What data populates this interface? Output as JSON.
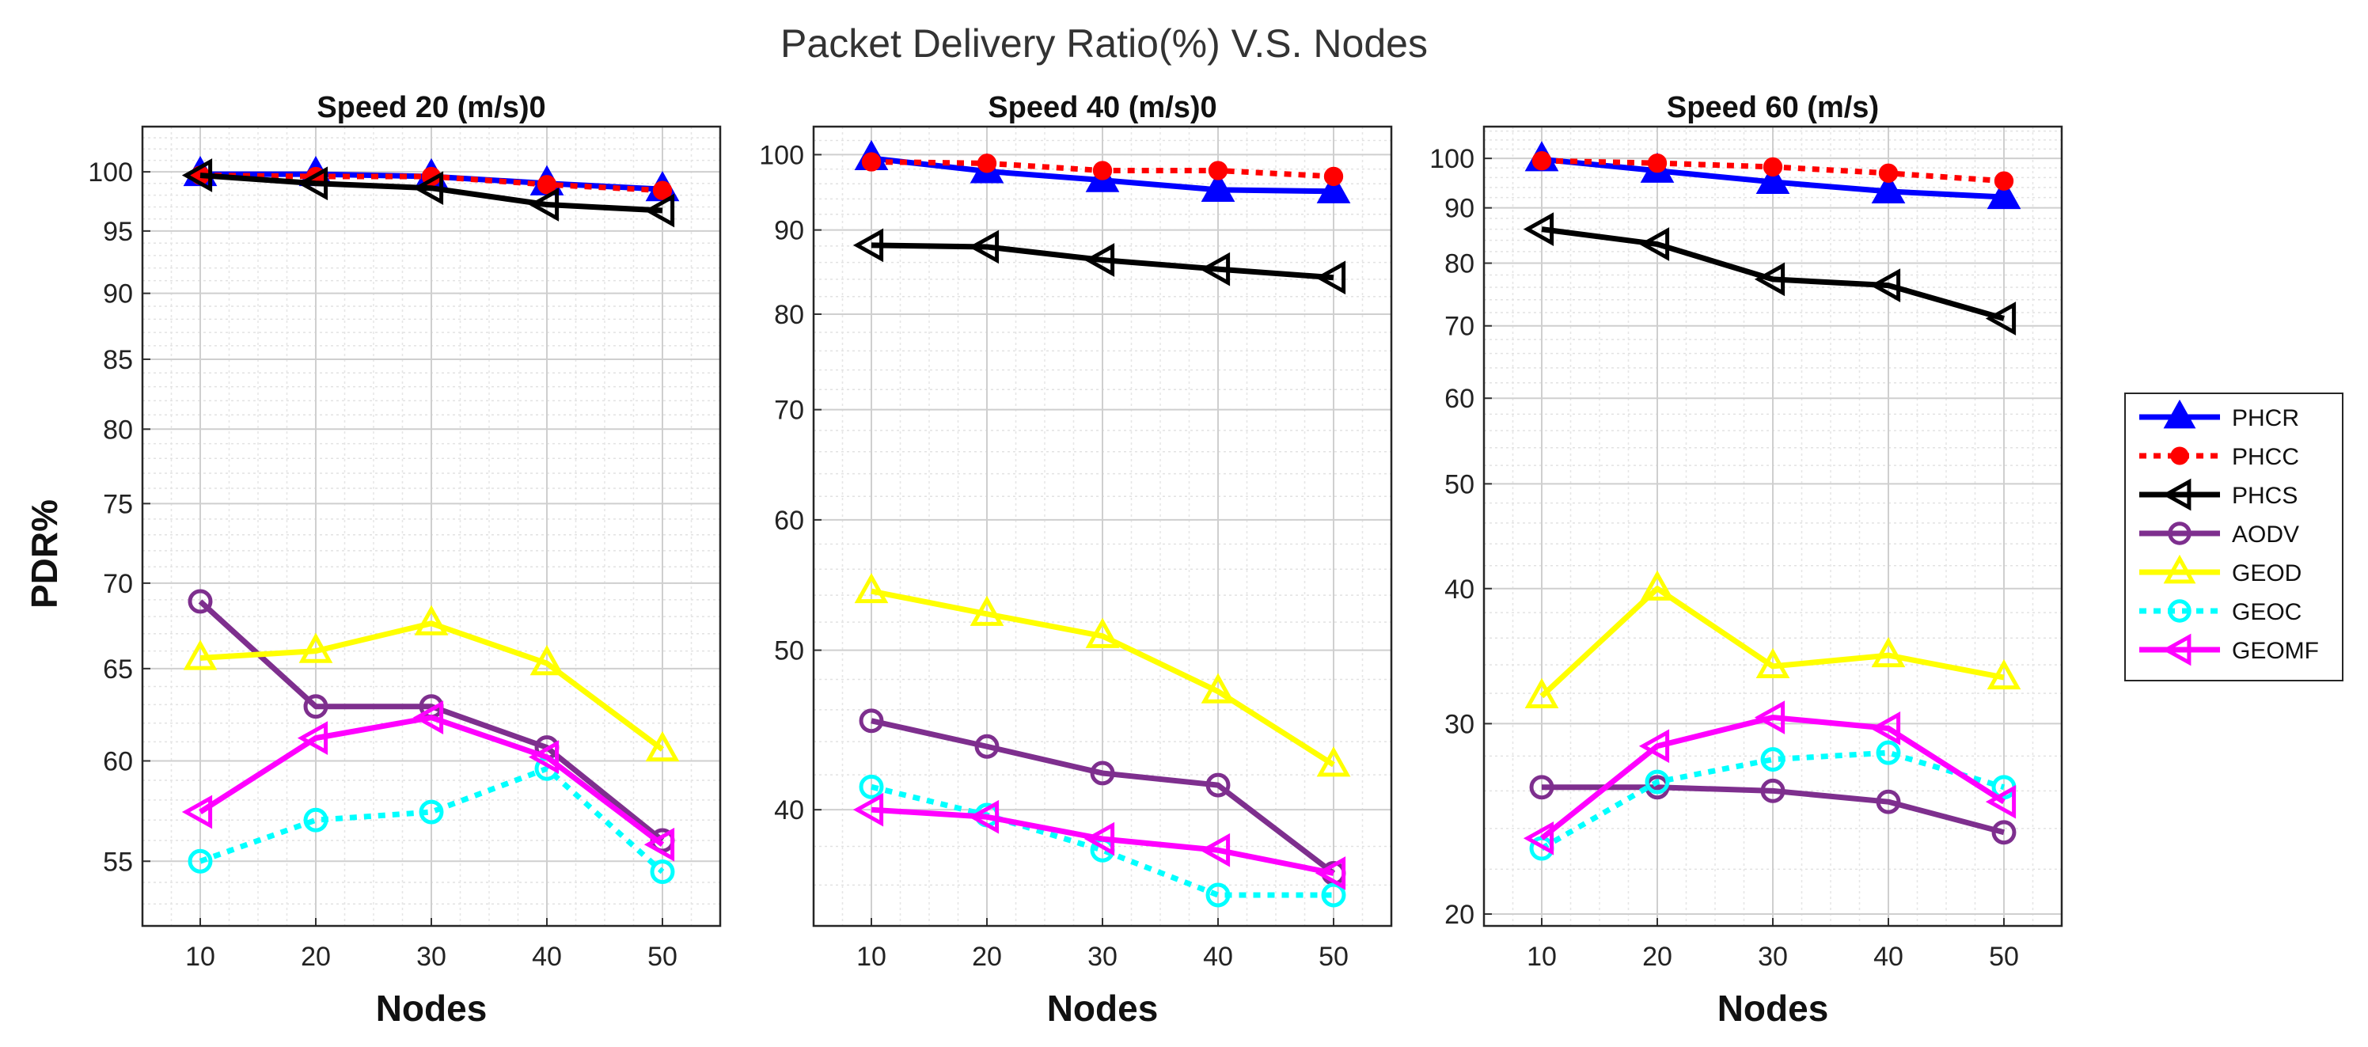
{
  "figure_title": "Packet Delivery Ratio(%) V.S. Nodes",
  "y_axis_label": "PDR%",
  "legend": [
    {
      "name": "PHCR",
      "color": "#0000ff",
      "dash": "solid",
      "marker": "triangle-up",
      "fill": true
    },
    {
      "name": "PHCC",
      "color": "#ff0000",
      "dash": "dotted",
      "marker": "dot",
      "fill": true
    },
    {
      "name": "PHCS",
      "color": "#000000",
      "dash": "solid",
      "marker": "triangle-left",
      "fill": false
    },
    {
      "name": "AODV",
      "color": "#7e2f8e",
      "dash": "solid",
      "marker": "circle",
      "fill": false
    },
    {
      "name": "GEOD",
      "color": "#ffff00",
      "dash": "solid",
      "marker": "triangle-up",
      "fill": false
    },
    {
      "name": "GEOC",
      "color": "#00ffff",
      "dash": "dotted",
      "marker": "circle",
      "fill": false
    },
    {
      "name": "GEOMF",
      "color": "#ff00ff",
      "dash": "solid",
      "marker": "triangle-left",
      "fill": false
    }
  ],
  "chart_data": [
    {
      "type": "line",
      "title": "Speed 20 (m/s)0",
      "xlabel": "Nodes",
      "ylabel": "PDR%",
      "yscale": "log",
      "x": [
        10,
        20,
        30,
        40,
        50
      ],
      "xlim": [
        5,
        55
      ],
      "ylim": [
        52,
        104
      ],
      "yticks": [
        55,
        60,
        65,
        70,
        75,
        80,
        85,
        90,
        95,
        100
      ],
      "series": [
        {
          "name": "PHCR",
          "values": [
            99.8,
            99.8,
            99.6,
            99.0,
            98.5
          ]
        },
        {
          "name": "PHCC",
          "values": [
            99.7,
            99.6,
            99.6,
            98.9,
            98.4
          ]
        },
        {
          "name": "PHCS",
          "values": [
            99.7,
            99.0,
            98.6,
            97.2,
            96.7
          ]
        },
        {
          "name": "AODV",
          "values": [
            68.9,
            62.9,
            62.9,
            60.7,
            56.0
          ]
        },
        {
          "name": "GEOD",
          "values": [
            65.6,
            66.0,
            67.6,
            65.3,
            60.6
          ]
        },
        {
          "name": "GEOC",
          "values": [
            55.0,
            57.0,
            57.4,
            59.6,
            54.5
          ]
        },
        {
          "name": "GEOMF",
          "values": [
            57.4,
            61.2,
            62.3,
            60.2,
            55.8
          ]
        }
      ]
    },
    {
      "type": "line",
      "title": "Speed 40 (m/s)0",
      "xlabel": "Nodes",
      "ylabel": "",
      "yscale": "log",
      "x": [
        10,
        20,
        30,
        40,
        50
      ],
      "xlim": [
        5,
        55
      ],
      "ylim": [
        34,
        104
      ],
      "yticks": [
        40,
        50,
        60,
        70,
        80,
        90,
        100
      ],
      "series": [
        {
          "name": "PHCR",
          "values": [
            99.5,
            97.7,
            96.5,
            95.2,
            95.0
          ]
        },
        {
          "name": "PHCC",
          "values": [
            99.0,
            98.8,
            97.8,
            97.8,
            97.0
          ]
        },
        {
          "name": "PHCS",
          "values": [
            88.1,
            87.9,
            86.3,
            85.2,
            84.2
          ]
        },
        {
          "name": "AODV",
          "values": [
            45.3,
            43.7,
            42.1,
            41.4,
            36.6
          ]
        },
        {
          "name": "GEOD",
          "values": [
            54.3,
            52.6,
            51.0,
            47.2,
            42.6
          ]
        },
        {
          "name": "GEOC",
          "values": [
            41.3,
            39.7,
            37.8,
            35.5,
            35.5
          ]
        },
        {
          "name": "GEOMF",
          "values": [
            40.0,
            39.6,
            38.4,
            37.8,
            36.6
          ]
        }
      ]
    },
    {
      "type": "line",
      "title": "Speed 60 (m/s)",
      "xlabel": "Nodes",
      "ylabel": "",
      "yscale": "log",
      "x": [
        10,
        20,
        30,
        40,
        50
      ],
      "xlim": [
        5,
        55
      ],
      "ylim": [
        19.5,
        107
      ],
      "yticks": [
        20,
        30,
        40,
        50,
        60,
        70,
        80,
        90,
        100
      ],
      "series": [
        {
          "name": "PHCR",
          "values": [
            99.8,
            97.4,
            95.1,
            93.2,
            92.1
          ]
        },
        {
          "name": "PHCC",
          "values": [
            99.5,
            99.0,
            98.2,
            96.9,
            95.3
          ]
        },
        {
          "name": "PHCS",
          "values": [
            86.0,
            83.3,
            77.3,
            76.3,
            71.1
          ]
        },
        {
          "name": "AODV",
          "values": [
            26.2,
            26.2,
            26.0,
            25.4,
            23.8
          ]
        },
        {
          "name": "GEOD",
          "values": [
            31.8,
            40.0,
            33.9,
            34.7,
            33.1
          ]
        },
        {
          "name": "GEOC",
          "values": [
            23.0,
            26.5,
            27.8,
            28.2,
            26.2
          ]
        },
        {
          "name": "GEOMF",
          "values": [
            23.5,
            28.6,
            30.4,
            29.7,
            25.4
          ]
        }
      ]
    }
  ]
}
